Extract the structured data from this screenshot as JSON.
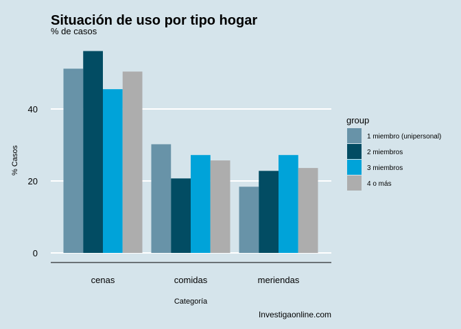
{
  "chart_data": {
    "type": "bar",
    "title": "Situación de uso por tipo hogar",
    "subtitle": "% de casos",
    "xlabel": "Categoría",
    "ylabel": "% Casos",
    "caption": "Investigaonline.com",
    "categories": [
      "cenas",
      "comidas",
      "meriendas"
    ],
    "yticks": [
      0,
      20,
      40
    ],
    "ylim": [
      0,
      60
    ],
    "legend_title": "group",
    "legend_position": "right",
    "series": [
      {
        "name": "1 miembro (unipersonal)",
        "color": "#6893a8",
        "values": [
          51.2,
          30.2,
          18.4
        ]
      },
      {
        "name": "2 miembros",
        "color": "#024c63",
        "values": [
          56.1,
          20.7,
          22.8
        ]
      },
      {
        "name": "3 miembros",
        "color": "#00a3d9",
        "values": [
          45.5,
          27.2,
          27.2
        ]
      },
      {
        "name": "4 o más",
        "color": "#adadad",
        "values": [
          50.4,
          25.7,
          23.6
        ]
      }
    ]
  }
}
